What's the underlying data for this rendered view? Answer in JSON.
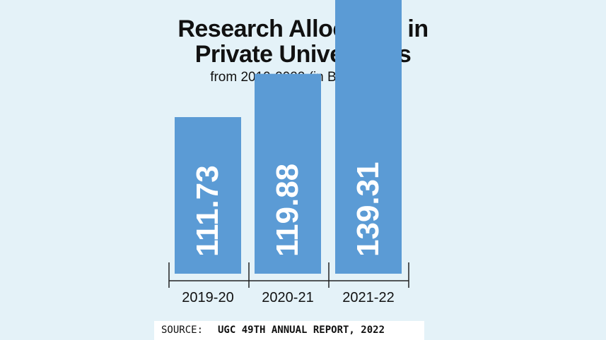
{
  "chart_data": {
    "type": "bar",
    "title_line1": "Research Allocation in",
    "title_line2": "Private Universities",
    "subtitle": "from 2019-2022 (in BDT Crore)",
    "categories": [
      "2019-20",
      "2020-21",
      "2021-22"
    ],
    "values": [
      111.73,
      119.88,
      139.31
    ],
    "value_labels": [
      "111.73",
      "119.88",
      "139.31"
    ],
    "xlabel": "",
    "ylabel": "",
    "grid": false,
    "bar_color": "#5b9bd5"
  },
  "source": {
    "label": "SOURCE:",
    "text": "UGC 49TH ANNUAL REPORT, 2022"
  },
  "colors": {
    "background": "#e4f2f8",
    "bar": "#5b9bd5",
    "bar_label": "#ffffff"
  }
}
